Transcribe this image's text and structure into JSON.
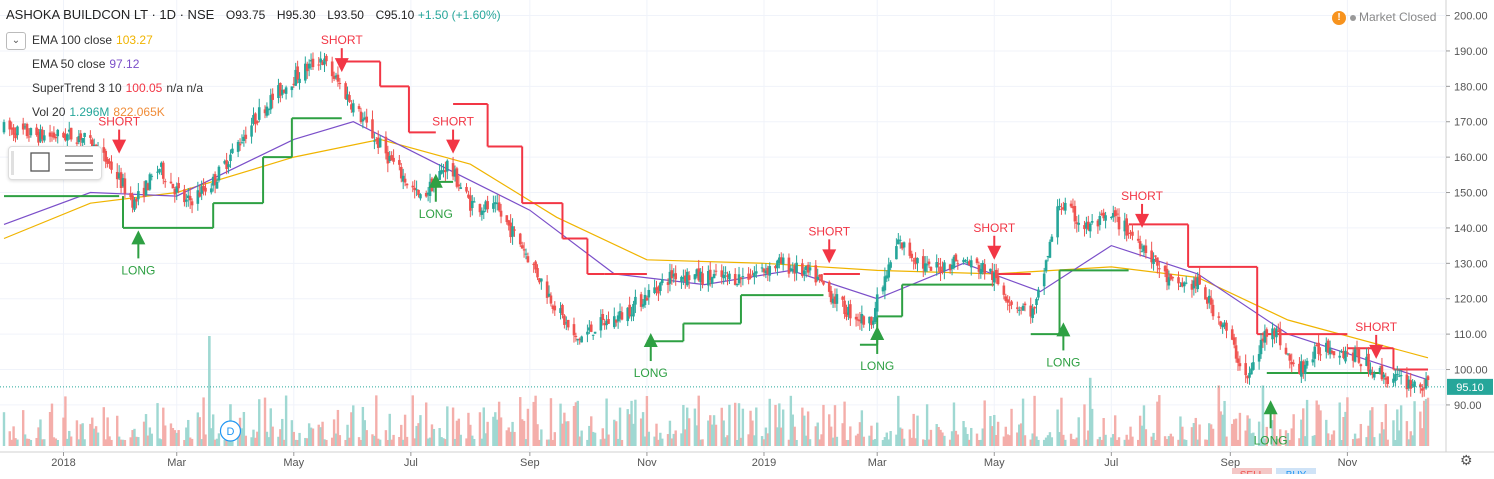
{
  "header": {
    "symbol": "ASHOKA BUILDCON LT · 1D · NSE",
    "open": "O93.75",
    "high": "H95.30",
    "low": "L93.50",
    "close": "C95.10",
    "change": "+1.50 (+1.60%)"
  },
  "indicators": [
    {
      "label": "EMA 100 close",
      "value": "103.27",
      "color": "#f0b400"
    },
    {
      "label": "EMA 50 close",
      "value": "97.12",
      "color": "#7b4fc9"
    },
    {
      "label": "SuperTrend 3 10",
      "value": "100.05",
      "extra": "n/a  n/a",
      "color": "#f23645"
    },
    {
      "label": "Vol 20",
      "value": "1.296M",
      "extra": "822.065K",
      "color": "#26a69a",
      "extra_color": "#f08c38"
    }
  ],
  "status": {
    "market": "Market Closed",
    "warn_icon": "warning-icon"
  },
  "colors": {
    "up": "#26a69a",
    "down": "#ef5350",
    "long": "#2ea043",
    "short": "#f23645"
  },
  "chart_data": {
    "type": "candlestick",
    "y_axis": {
      "min": 88,
      "max": 201,
      "ticks": [
        200,
        190,
        180,
        170,
        160,
        150,
        140,
        130,
        120,
        110,
        100,
        90
      ],
      "tick_labels": [
        "200.00",
        "190.00",
        "180.00",
        "170.00",
        "160.00",
        "150.00",
        "140.00",
        "130.00",
        "120.00",
        "110.00",
        "100.00",
        "90.00"
      ]
    },
    "x_axis": {
      "labels": [
        "2018",
        "Mar",
        "May",
        "Jul",
        "Sep",
        "Nov",
        "2019",
        "Mar",
        "May",
        "Jul",
        "Sep",
        "Nov"
      ],
      "label_dates": [
        "2018-01-01",
        "2018-03-01",
        "2018-05-01",
        "2018-07-01",
        "2018-09-01",
        "2018-11-01",
        "2019-01-01",
        "2019-03-01",
        "2019-05-01",
        "2019-07-01",
        "2019-09-01",
        "2019-11-01"
      ],
      "start": "2017-12-01",
      "end": "2019-12-13"
    },
    "last_price": {
      "value": 95.1,
      "label": "95.10"
    },
    "price_path": [
      {
        "date": "2017-12-01",
        "value": 168
      },
      {
        "date": "2017-12-20",
        "value": 166
      },
      {
        "date": "2018-01-10",
        "value": 166
      },
      {
        "date": "2018-01-25",
        "value": 158
      },
      {
        "date": "2018-02-07",
        "value": 147
      },
      {
        "date": "2018-02-20",
        "value": 157
      },
      {
        "date": "2018-03-06",
        "value": 147
      },
      {
        "date": "2018-03-20",
        "value": 153
      },
      {
        "date": "2018-04-01",
        "value": 163
      },
      {
        "date": "2018-04-15",
        "value": 174
      },
      {
        "date": "2018-04-30",
        "value": 182
      },
      {
        "date": "2018-05-15",
        "value": 188
      },
      {
        "date": "2018-05-28",
        "value": 178
      },
      {
        "date": "2018-06-10",
        "value": 167
      },
      {
        "date": "2018-06-22",
        "value": 158
      },
      {
        "date": "2018-07-06",
        "value": 148
      },
      {
        "date": "2018-07-20",
        "value": 158
      },
      {
        "date": "2018-08-01",
        "value": 147
      },
      {
        "date": "2018-08-15",
        "value": 145
      },
      {
        "date": "2018-08-28",
        "value": 135
      },
      {
        "date": "2018-09-10",
        "value": 122
      },
      {
        "date": "2018-09-25",
        "value": 108
      },
      {
        "date": "2018-10-05",
        "value": 112
      },
      {
        "date": "2018-10-18",
        "value": 115
      },
      {
        "date": "2018-11-01",
        "value": 121
      },
      {
        "date": "2018-11-15",
        "value": 127
      },
      {
        "date": "2018-12-01",
        "value": 126
      },
      {
        "date": "2018-12-20",
        "value": 126
      },
      {
        "date": "2019-01-10",
        "value": 130
      },
      {
        "date": "2019-01-28",
        "value": 126
      },
      {
        "date": "2019-02-12",
        "value": 117
      },
      {
        "date": "2019-02-25",
        "value": 113
      },
      {
        "date": "2019-03-12",
        "value": 136
      },
      {
        "date": "2019-03-28",
        "value": 128
      },
      {
        "date": "2019-04-12",
        "value": 131
      },
      {
        "date": "2019-04-28",
        "value": 128
      },
      {
        "date": "2019-05-10",
        "value": 119
      },
      {
        "date": "2019-05-22",
        "value": 116
      },
      {
        "date": "2019-06-04",
        "value": 147
      },
      {
        "date": "2019-06-18",
        "value": 140
      },
      {
        "date": "2019-07-02",
        "value": 143
      },
      {
        "date": "2019-07-18",
        "value": 135
      },
      {
        "date": "2019-08-01",
        "value": 124
      },
      {
        "date": "2019-08-15",
        "value": 124
      },
      {
        "date": "2019-08-29",
        "value": 112
      },
      {
        "date": "2019-09-10",
        "value": 97
      },
      {
        "date": "2019-09-22",
        "value": 114
      },
      {
        "date": "2019-10-05",
        "value": 99
      },
      {
        "date": "2019-10-20",
        "value": 107
      },
      {
        "date": "2019-11-05",
        "value": 104
      },
      {
        "date": "2019-11-20",
        "value": 98
      },
      {
        "date": "2019-12-13",
        "value": 95.1
      }
    ],
    "ema100": [
      {
        "date": "2017-12-01",
        "value": 137
      },
      {
        "date": "2018-01-15",
        "value": 147
      },
      {
        "date": "2018-03-01",
        "value": 150
      },
      {
        "date": "2018-05-01",
        "value": 160
      },
      {
        "date": "2018-06-15",
        "value": 165
      },
      {
        "date": "2018-08-01",
        "value": 158
      },
      {
        "date": "2018-09-15",
        "value": 143
      },
      {
        "date": "2018-11-01",
        "value": 131
      },
      {
        "date": "2019-01-01",
        "value": 130
      },
      {
        "date": "2019-03-01",
        "value": 128
      },
      {
        "date": "2019-05-01",
        "value": 127
      },
      {
        "date": "2019-07-01",
        "value": 129
      },
      {
        "date": "2019-08-15",
        "value": 126
      },
      {
        "date": "2019-10-01",
        "value": 114
      },
      {
        "date": "2019-12-13",
        "value": 103.3
      }
    ],
    "ema50": [
      {
        "date": "2017-12-01",
        "value": 141
      },
      {
        "date": "2018-01-15",
        "value": 150
      },
      {
        "date": "2018-03-01",
        "value": 149
      },
      {
        "date": "2018-05-01",
        "value": 165
      },
      {
        "date": "2018-06-01",
        "value": 170
      },
      {
        "date": "2018-07-15",
        "value": 158
      },
      {
        "date": "2018-09-01",
        "value": 145
      },
      {
        "date": "2018-10-15",
        "value": 127
      },
      {
        "date": "2018-12-01",
        "value": 124
      },
      {
        "date": "2019-01-15",
        "value": 128
      },
      {
        "date": "2019-03-01",
        "value": 120
      },
      {
        "date": "2019-04-15",
        "value": 130
      },
      {
        "date": "2019-05-25",
        "value": 122
      },
      {
        "date": "2019-07-01",
        "value": 135
      },
      {
        "date": "2019-08-15",
        "value": 127
      },
      {
        "date": "2019-10-01",
        "value": 110
      },
      {
        "date": "2019-12-13",
        "value": 97.1
      }
    ],
    "supertrend": [
      {
        "start": "2017-12-01",
        "end": "2018-01-30",
        "value": 149,
        "dir": "long"
      },
      {
        "start": "2018-02-01",
        "end": "2018-03-20",
        "value": 140,
        "dir": "long"
      },
      {
        "start": "2018-03-20",
        "end": "2018-04-15",
        "value": 147,
        "dir": "long"
      },
      {
        "start": "2018-04-15",
        "end": "2018-04-30",
        "value": 160,
        "dir": "long"
      },
      {
        "start": "2018-04-30",
        "end": "2018-05-26",
        "value": 171,
        "dir": "long"
      },
      {
        "start": "2018-05-26",
        "end": "2018-06-15",
        "value": 187,
        "dir": "short"
      },
      {
        "start": "2018-06-15",
        "end": "2018-06-30",
        "value": 180,
        "dir": "short"
      },
      {
        "start": "2018-06-30",
        "end": "2018-07-14",
        "value": 167,
        "dir": "short"
      },
      {
        "start": "2018-07-14",
        "end": "2018-07-23",
        "value": 153,
        "dir": "long"
      },
      {
        "start": "2018-07-23",
        "end": "2018-08-10",
        "value": 175,
        "dir": "short"
      },
      {
        "start": "2018-08-10",
        "end": "2018-08-28",
        "value": 163,
        "dir": "short"
      },
      {
        "start": "2018-08-28",
        "end": "2018-09-18",
        "value": 147,
        "dir": "short"
      },
      {
        "start": "2018-09-18",
        "end": "2018-10-01",
        "value": 137,
        "dir": "short"
      },
      {
        "start": "2018-10-01",
        "end": "2018-10-10",
        "value": 127,
        "dir": "short"
      },
      {
        "start": "2018-10-10",
        "end": "2018-11-01",
        "value": 127,
        "dir": "short"
      },
      {
        "start": "2018-11-01",
        "end": "2018-11-20",
        "value": 108,
        "dir": "long"
      },
      {
        "start": "2018-11-20",
        "end": "2018-12-20",
        "value": 113,
        "dir": "long"
      },
      {
        "start": "2018-12-20",
        "end": "2019-02-01",
        "value": 121,
        "dir": "long"
      },
      {
        "start": "2019-02-01",
        "end": "2019-02-20",
        "value": 127,
        "dir": "short"
      },
      {
        "start": "2019-02-20",
        "end": "2019-03-01",
        "value": 107,
        "dir": "long"
      },
      {
        "start": "2019-03-01",
        "end": "2019-03-14",
        "value": 115,
        "dir": "long"
      },
      {
        "start": "2019-03-14",
        "end": "2019-05-01",
        "value": 124,
        "dir": "long"
      },
      {
        "start": "2019-05-01",
        "end": "2019-05-20",
        "value": 127,
        "dir": "short"
      },
      {
        "start": "2019-05-20",
        "end": "2019-06-04",
        "value": 110,
        "dir": "long"
      },
      {
        "start": "2019-06-04",
        "end": "2019-07-10",
        "value": 128,
        "dir": "long"
      },
      {
        "start": "2019-07-10",
        "end": "2019-08-10",
        "value": 141,
        "dir": "short"
      },
      {
        "start": "2019-08-10",
        "end": "2019-09-15",
        "value": 129,
        "dir": "short"
      },
      {
        "start": "2019-09-15",
        "end": "2019-11-01",
        "value": 110,
        "dir": "short"
      },
      {
        "start": "2019-09-20",
        "end": "2019-11-20",
        "value": 99,
        "dir": "long"
      },
      {
        "start": "2019-11-01",
        "end": "2019-11-25",
        "value": 106,
        "dir": "short"
      },
      {
        "start": "2019-11-25",
        "end": "2019-12-13",
        "value": 100,
        "dir": "short"
      }
    ],
    "signals": [
      {
        "date": "2018-02-09",
        "label": "LONG",
        "type": "long",
        "price": 141
      },
      {
        "date": "2018-01-30",
        "label": "SHORT",
        "type": "short",
        "price": 161
      },
      {
        "date": "2018-05-26",
        "label": "SHORT",
        "type": "short",
        "price": 184
      },
      {
        "date": "2018-07-23",
        "label": "SHORT",
        "type": "short",
        "price": 161
      },
      {
        "date": "2018-07-14",
        "label": "LONG",
        "type": "long",
        "price": 157
      },
      {
        "date": "2018-11-03",
        "label": "LONG",
        "type": "long",
        "price": 112
      },
      {
        "date": "2019-02-04",
        "label": "SHORT",
        "type": "short",
        "price": 130
      },
      {
        "date": "2019-03-01",
        "label": "LONG",
        "type": "long",
        "price": 114
      },
      {
        "date": "2019-05-01",
        "label": "SHORT",
        "type": "short",
        "price": 131
      },
      {
        "date": "2019-06-06",
        "label": "LONG",
        "type": "long",
        "price": 115
      },
      {
        "date": "2019-07-17",
        "label": "SHORT",
        "type": "short",
        "price": 140
      },
      {
        "date": "2019-09-22",
        "label": "LONG",
        "type": "long",
        "price": 93
      },
      {
        "date": "2019-11-16",
        "label": "SHORT",
        "type": "short",
        "price": 103
      }
    ],
    "volume_spikes": [
      {
        "date": "2018-03-18",
        "size": 1.0,
        "dir": "up"
      },
      {
        "date": "2018-03-29",
        "size": 0.38,
        "dir": "up"
      },
      {
        "date": "2019-06-20",
        "size": 0.62,
        "dir": "up"
      },
      {
        "date": "2019-08-26",
        "size": 0.55,
        "dir": "down"
      },
      {
        "date": "2019-09-18",
        "size": 0.55,
        "dir": "up"
      }
    ],
    "dividend_marker": {
      "date": "2018-03-29",
      "label": "D"
    }
  },
  "partial_text": {
    "bottom_1": "SELL",
    "bottom_2": "BUY"
  }
}
